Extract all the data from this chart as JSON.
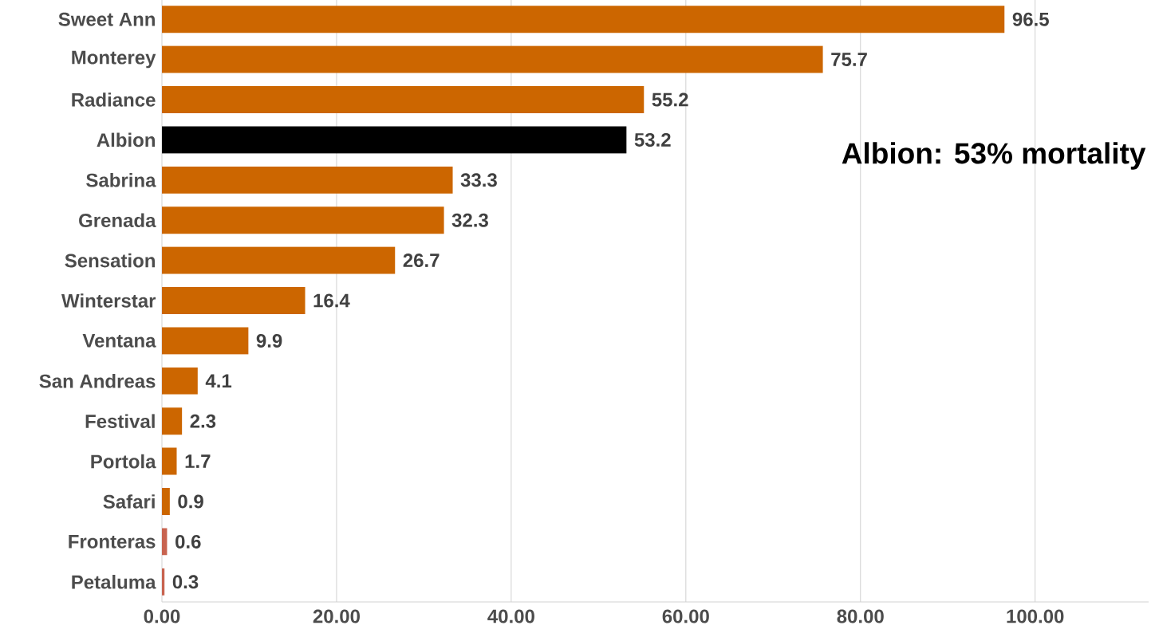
{
  "chart_data": {
    "type": "bar",
    "orientation": "horizontal",
    "categories": [
      "Sweet Ann",
      "Monterey",
      "Radiance",
      "Albion",
      "Sabrina",
      "Grenada",
      "Sensation",
      "Winterstar",
      "Ventana",
      "San Andreas",
      "Festival",
      "Portola",
      "Safari",
      "Fronteras",
      "Petaluma"
    ],
    "values": [
      96.5,
      75.7,
      55.2,
      53.2,
      33.3,
      32.3,
      26.7,
      16.4,
      9.9,
      4.1,
      2.3,
      1.7,
      0.9,
      0.6,
      0.3
    ],
    "colors": [
      "#cc6600",
      "#cc6600",
      "#cc6600",
      "#000000",
      "#cc6600",
      "#cc6600",
      "#cc6600",
      "#cc6600",
      "#cc6600",
      "#cc6600",
      "#cc6600",
      "#cc6600",
      "#cc6600",
      "#c8634f",
      "#c8634f"
    ],
    "xlim": [
      0,
      113
    ],
    "xticks": [
      {
        "value": 0,
        "label": "0.00"
      },
      {
        "value": 20,
        "label": "20.00"
      },
      {
        "value": 40,
        "label": "40.00"
      },
      {
        "value": 60,
        "label": "60.00"
      },
      {
        "value": 80,
        "label": "80.00"
      },
      {
        "value": 100,
        "label": "100.00"
      }
    ],
    "grid": "x",
    "data_labels": true,
    "annotations": [
      "Albion: 53% mortality"
    ]
  }
}
